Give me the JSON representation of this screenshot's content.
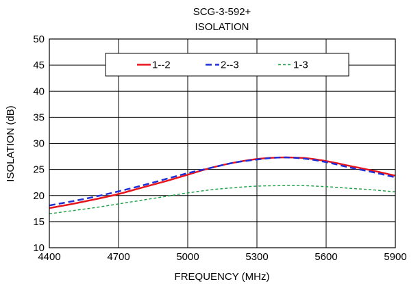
{
  "chart_data": {
    "type": "line",
    "title": "SCG-3-592+",
    "subtitle": "ISOLATION",
    "xlabel": "FREQUENCY (MHz)",
    "ylabel": "ISOLATION (dB)",
    "xlim": [
      4400,
      5900
    ],
    "ylim": [
      10,
      50
    ],
    "xticks": [
      4400,
      4700,
      5000,
      5300,
      5600,
      5900
    ],
    "yticks": [
      10,
      15,
      20,
      25,
      30,
      35,
      40,
      45,
      50
    ],
    "grid": true,
    "legend_position": "top",
    "series": [
      {
        "name": "1--2",
        "color": "#e8141c",
        "style": "solid",
        "x": [
          4400,
          4500,
          4600,
          4700,
          4800,
          4900,
          5000,
          5100,
          5200,
          5300,
          5400,
          5500,
          5600,
          5700,
          5800,
          5900
        ],
        "y": [
          17.6,
          18.4,
          19.3,
          20.3,
          21.5,
          22.7,
          24.0,
          25.3,
          26.3,
          27.0,
          27.3,
          27.2,
          26.6,
          25.7,
          24.8,
          23.8
        ]
      },
      {
        "name": "2--3",
        "color": "#1f2fd6",
        "style": "dashed",
        "x": [
          4400,
          4500,
          4600,
          4700,
          4800,
          4900,
          5000,
          5100,
          5200,
          5300,
          5400,
          5500,
          5600,
          5700,
          5800,
          5900
        ],
        "y": [
          18.1,
          18.9,
          19.8,
          20.8,
          21.9,
          23.1,
          24.3,
          25.3,
          26.3,
          26.9,
          27.3,
          27.1,
          26.4,
          25.4,
          24.5,
          23.5
        ]
      },
      {
        "name": "1-3",
        "color": "#22a34a",
        "style": "dotted",
        "x": [
          4400,
          4500,
          4600,
          4700,
          4800,
          4900,
          5000,
          5100,
          5200,
          5300,
          5400,
          5500,
          5600,
          5700,
          5800,
          5900
        ],
        "y": [
          16.5,
          17.1,
          17.7,
          18.4,
          19.1,
          19.8,
          20.5,
          21.1,
          21.5,
          21.8,
          21.9,
          21.9,
          21.7,
          21.4,
          21.1,
          20.7
        ]
      }
    ]
  }
}
